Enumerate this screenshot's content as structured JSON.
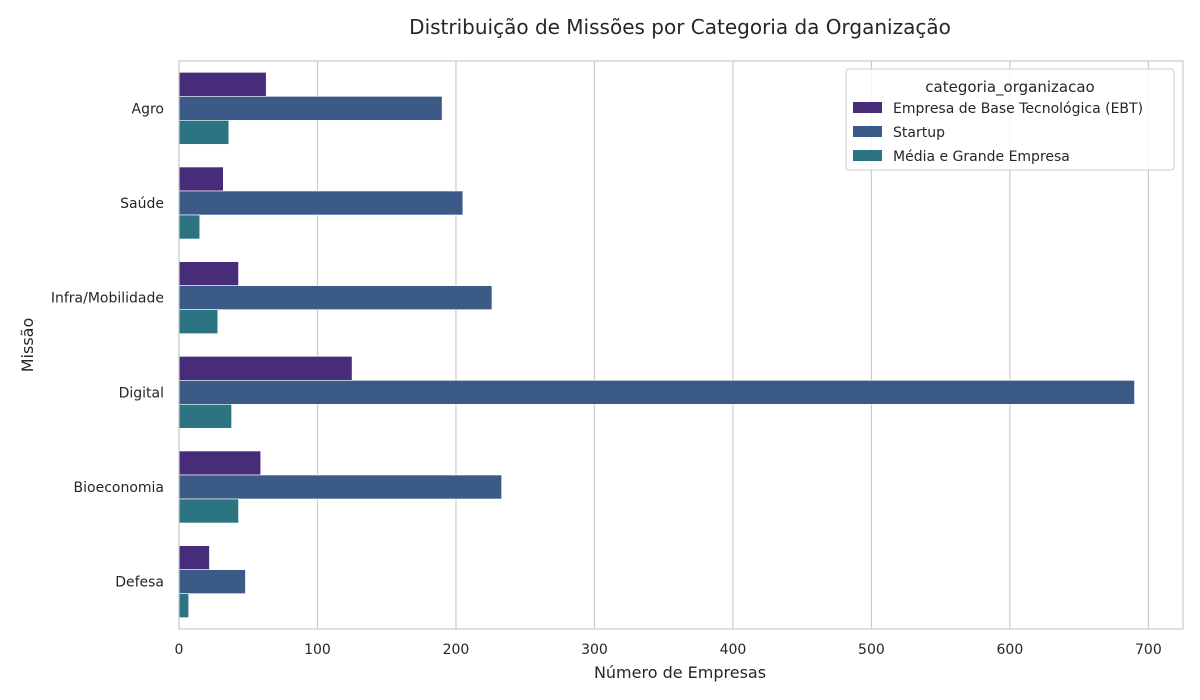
{
  "chart_data": {
    "type": "bar",
    "orientation": "horizontal",
    "title": "Distribuição de Missões por Categoria da Organização",
    "xlabel": "Número de Empresas",
    "ylabel": "Missão",
    "xlim": [
      0,
      725
    ],
    "xticks": [
      0,
      100,
      200,
      300,
      400,
      500,
      600,
      700
    ],
    "grid": "vertical",
    "categories": [
      "Agro",
      "Saúde",
      "Infra/Mobilidade",
      "Digital",
      "Bioeconomia",
      "Defesa"
    ],
    "legend": {
      "title": "categoria_organizacao",
      "placement": "top-right"
    },
    "series": [
      {
        "name": "Empresa de Base Tecnológica (EBT)",
        "color": "#472c7a",
        "values": [
          63,
          32,
          43,
          125,
          59,
          22
        ]
      },
      {
        "name": "Startup",
        "color": "#3b5a88",
        "values": [
          190,
          205,
          226,
          690,
          233,
          48
        ]
      },
      {
        "name": "Média e Grande Empresa",
        "color": "#2d7482",
        "values": [
          36,
          15,
          28,
          38,
          43,
          7
        ]
      }
    ]
  }
}
